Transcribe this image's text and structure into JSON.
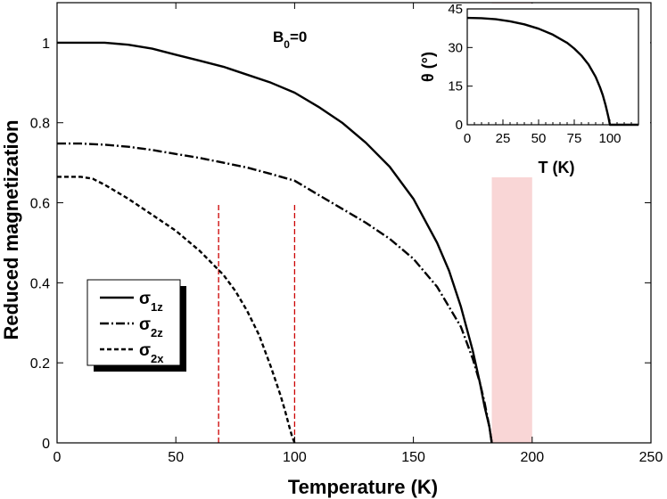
{
  "chart_data": [
    {
      "type": "line",
      "title": "",
      "xlabel": "Temperature (K)",
      "ylabel": "Reduced magnetization",
      "xlim": [
        0,
        250
      ],
      "ylim": [
        0,
        1.1
      ],
      "xticks": [
        0,
        50,
        100,
        150,
        200,
        250
      ],
      "yticks": [
        0,
        0.2,
        0.4,
        0.6,
        0.8,
        1
      ],
      "xtick_labels": [
        "0",
        "50",
        "100",
        "150",
        "200",
        "250"
      ],
      "ytick_labels": [
        "0",
        "0.2",
        "0.4",
        "0.6",
        "0.8",
        "1"
      ],
      "grid": false,
      "legend": {
        "placement": "middle-left",
        "entries": [
          {
            "base": "σ",
            "sub": "1z",
            "style": "solid"
          },
          {
            "base": "σ",
            "sub": "2z",
            "style": "dashdot"
          },
          {
            "base": "σ",
            "sub": "2x",
            "style": "dashed"
          }
        ]
      },
      "annotation": {
        "base": "B",
        "sub": "0",
        "rest": "=0"
      },
      "series": [
        {
          "style": "solid",
          "x": [
            0,
            10,
            20,
            30,
            40,
            50,
            60,
            70,
            80,
            90,
            100,
            110,
            120,
            130,
            140,
            150,
            160,
            165,
            170,
            175,
            178,
            180,
            182,
            183
          ],
          "y": [
            1.0,
            1.0,
            1.0,
            0.995,
            0.985,
            0.97,
            0.955,
            0.94,
            0.92,
            0.9,
            0.875,
            0.84,
            0.8,
            0.75,
            0.69,
            0.61,
            0.5,
            0.43,
            0.34,
            0.23,
            0.15,
            0.09,
            0.04,
            0.0
          ]
        },
        {
          "style": "dashdot",
          "x": [
            0,
            10,
            20,
            30,
            40,
            50,
            60,
            70,
            80,
            90,
            100,
            110,
            120,
            130,
            140,
            150,
            160,
            170,
            175,
            178,
            180,
            182,
            183
          ],
          "y": [
            0.748,
            0.748,
            0.745,
            0.74,
            0.732,
            0.722,
            0.712,
            0.7,
            0.688,
            0.672,
            0.655,
            0.62,
            0.585,
            0.55,
            0.51,
            0.46,
            0.39,
            0.29,
            0.21,
            0.15,
            0.1,
            0.04,
            0.0
          ]
        },
        {
          "style": "dashed",
          "x": [
            0,
            10,
            15,
            20,
            30,
            40,
            50,
            60,
            70,
            75,
            80,
            85,
            90,
            94,
            96,
            98,
            99,
            100
          ],
          "y": [
            0.665,
            0.665,
            0.66,
            0.645,
            0.61,
            0.57,
            0.53,
            0.48,
            0.42,
            0.38,
            0.33,
            0.27,
            0.19,
            0.12,
            0.08,
            0.035,
            0.015,
            0.0
          ]
        }
      ],
      "vlines": [
        {
          "x": 68,
          "y_top": 0.6,
          "color": "#cc0000",
          "style": "dashed"
        },
        {
          "x": 100,
          "y_top": 0.6,
          "color": "#cc0000",
          "style": "dashed"
        }
      ],
      "band": {
        "x_from": 183,
        "x_to": 200,
        "color": "#f7c8c8"
      },
      "inset": {
        "type": "line",
        "xlabel": "T (K)",
        "ylabel": "θ (°)",
        "xlim": [
          0,
          120
        ],
        "ylim": [
          0,
          45
        ],
        "xticks": [
          0,
          25,
          50,
          75,
          100
        ],
        "yticks": [
          0,
          15,
          30,
          45
        ],
        "xtick_labels": [
          "0",
          "25",
          "50",
          "75",
          "100"
        ],
        "ytick_labels": [
          "0",
          "15",
          "30",
          "45"
        ],
        "series": [
          {
            "style": "solid",
            "x": [
              0,
              10,
              20,
              30,
              40,
              50,
              60,
              70,
              75,
              80,
              85,
              90,
              93,
              95,
              97,
              98,
              99,
              100,
              110,
              120
            ],
            "y": [
              41.5,
              41.4,
              41,
              40.2,
              39,
              37.3,
              35,
              31.8,
              29.6,
              26.9,
              23.4,
              18.6,
              14.6,
              11.5,
              7.5,
              5.2,
              2.8,
              0,
              0,
              0
            ]
          }
        ]
      }
    }
  ]
}
